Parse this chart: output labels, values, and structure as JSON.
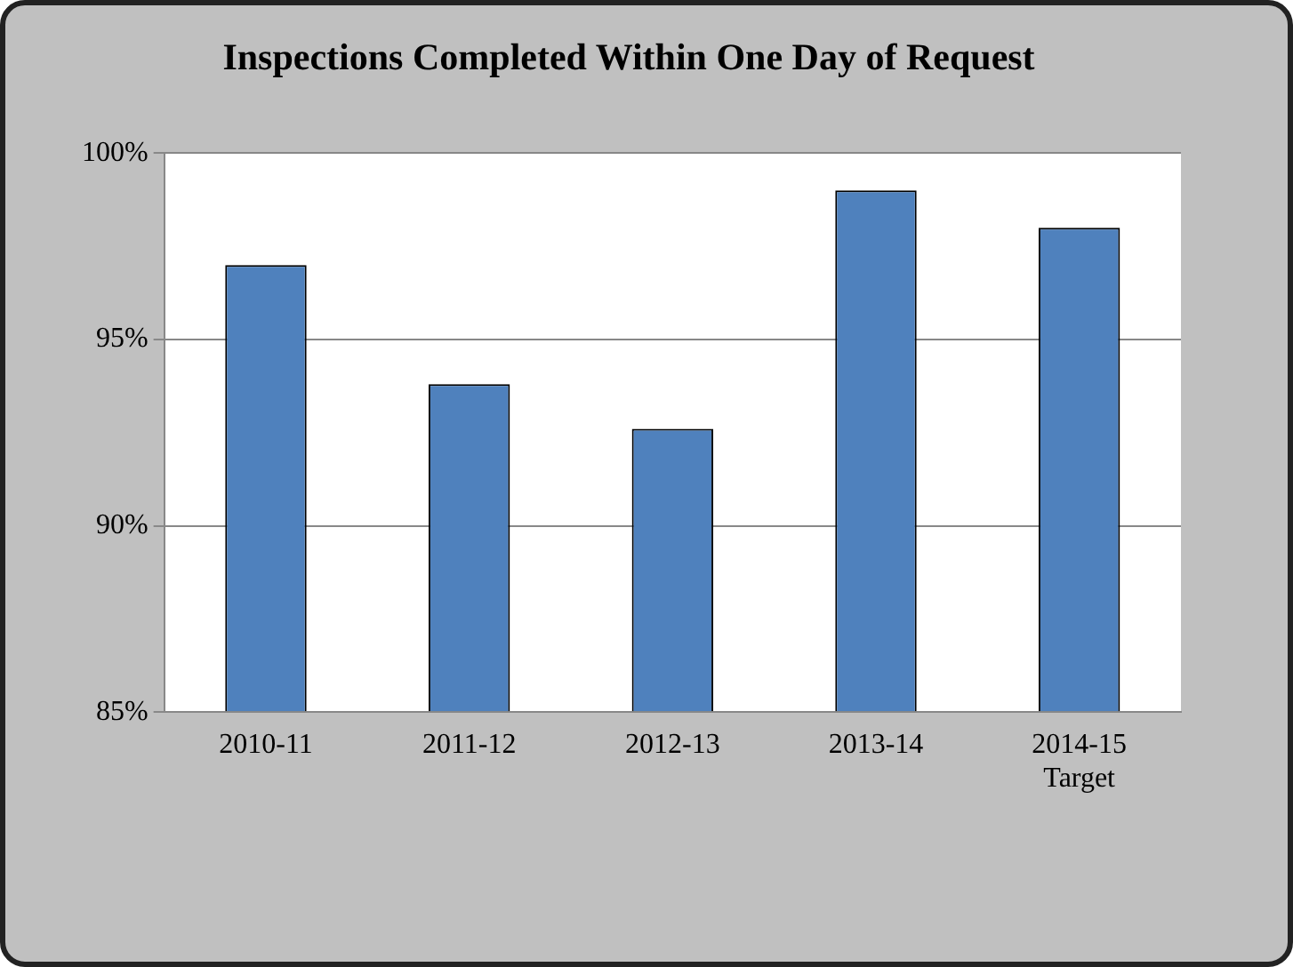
{
  "chart_data": {
    "type": "bar",
    "title": "Inspections Completed Within One Day of Request",
    "categories": [
      "2010-11",
      "2011-12",
      "2012-13",
      "2013-14",
      "2014-15\nTarget"
    ],
    "values": [
      97.0,
      93.8,
      92.6,
      99.0,
      98.0
    ],
    "color": "#4f81bd",
    "ylim": [
      85,
      100
    ],
    "yticks": [
      {
        "value": 85,
        "label": "85%"
      },
      {
        "value": 90,
        "label": "90%"
      },
      {
        "value": 95,
        "label": "95%"
      },
      {
        "value": 100,
        "label": "100%"
      }
    ],
    "grid": "y",
    "legend": false
  }
}
